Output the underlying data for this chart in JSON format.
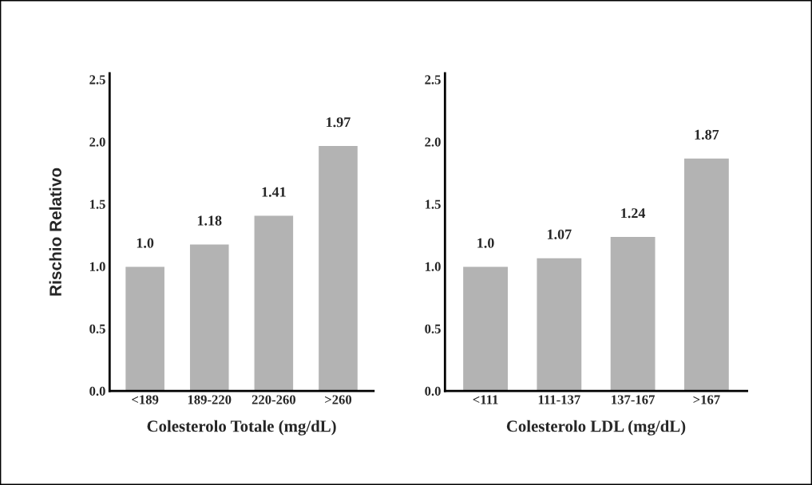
{
  "chart_data": [
    {
      "type": "bar",
      "ylabel": "Rischio Relativo",
      "xlabel": "Colesterolo Totale (mg/dL)",
      "categories": [
        "<189",
        "189-220",
        "220-260",
        ">260"
      ],
      "values": [
        1.0,
        1.18,
        1.41,
        1.97
      ],
      "value_labels": [
        "1.0",
        "1.18",
        "1.41",
        "1.97"
      ],
      "color": "#b3b3b3",
      "ylim": [
        0,
        2.55
      ],
      "yticks": [
        {
          "value": 0,
          "label": "0.0"
        },
        {
          "value": 0.5,
          "label": "0.5"
        },
        {
          "value": 1,
          "label": "1.0"
        },
        {
          "value": 1.5,
          "label": "1.5"
        },
        {
          "value": 2,
          "label": "2.0"
        },
        {
          "value": 2.5,
          "label": "2.5"
        }
      ],
      "grid": false,
      "legend": false
    },
    {
      "type": "bar",
      "xlabel": "Colesterolo LDL (mg/dL)",
      "categories": [
        "<111",
        "111-137",
        "137-167",
        ">167"
      ],
      "values": [
        1.0,
        1.07,
        1.24,
        1.87
      ],
      "value_labels": [
        "1.0",
        "1.07",
        "1.24",
        "1.87"
      ],
      "color": "#b3b3b3",
      "ylim": [
        0,
        2.55
      ],
      "yticks": [
        {
          "value": 0,
          "label": "0.0"
        },
        {
          "value": 0.5,
          "label": "0.5"
        },
        {
          "value": 1,
          "label": "1.0"
        },
        {
          "value": 1.5,
          "label": "1.5"
        },
        {
          "value": 2,
          "label": "2.0"
        },
        {
          "value": 2.5,
          "label": "2.5"
        }
      ],
      "grid": false,
      "legend": false
    }
  ]
}
